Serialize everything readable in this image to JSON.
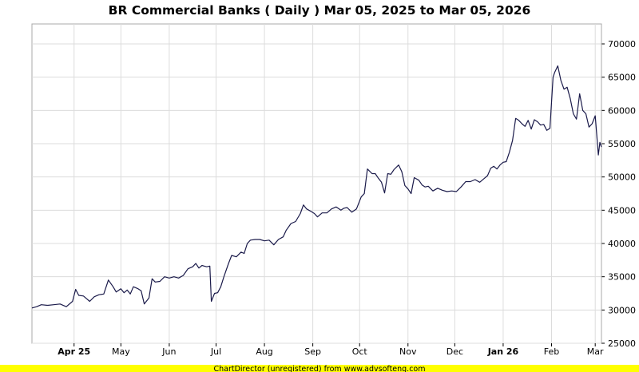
{
  "chart_data": {
    "type": "line",
    "title": "BR Commercial Banks ( Daily ) Mar 05, 2025 to Mar 05, 2026",
    "xlabel": "",
    "ylabel": "",
    "x_range": [
      "2025-03-05",
      "2026-03-05"
    ],
    "ylim": [
      25000,
      73000
    ],
    "y_ticks": [
      25000,
      30000,
      35000,
      40000,
      45000,
      50000,
      55000,
      60000,
      65000,
      70000
    ],
    "x_ticks": [
      {
        "date": "2025-04-01",
        "label": "Apr 25",
        "bold": true
      },
      {
        "date": "2025-05-01",
        "label": "May",
        "bold": false
      },
      {
        "date": "2025-06-01",
        "label": "Jun",
        "bold": false
      },
      {
        "date": "2025-07-01",
        "label": "Jul",
        "bold": false
      },
      {
        "date": "2025-08-01",
        "label": "Aug",
        "bold": false
      },
      {
        "date": "2025-09-01",
        "label": "Sep",
        "bold": false
      },
      {
        "date": "2025-10-01",
        "label": "Oct",
        "bold": false
      },
      {
        "date": "2025-11-01",
        "label": "Nov",
        "bold": false
      },
      {
        "date": "2025-12-01",
        "label": "Dec",
        "bold": false
      },
      {
        "date": "2026-01-01",
        "label": "Jan 26",
        "bold": true
      },
      {
        "date": "2026-02-01",
        "label": "Feb",
        "bold": false
      },
      {
        "date": "2026-03-01",
        "label": "Mar",
        "bold": false
      }
    ],
    "grid": true,
    "line_color": "#1a1a4a",
    "series": [
      {
        "points": [
          [
            "2025-03-05",
            30300
          ],
          [
            "2025-03-08",
            30500
          ],
          [
            "2025-03-11",
            30800
          ],
          [
            "2025-03-15",
            30700
          ],
          [
            "2025-03-19",
            30800
          ],
          [
            "2025-03-23",
            30900
          ],
          [
            "2025-03-27",
            30500
          ],
          [
            "2025-03-31",
            31300
          ],
          [
            "2025-04-02",
            33100
          ],
          [
            "2025-04-04",
            32200
          ],
          [
            "2025-04-07",
            32100
          ],
          [
            "2025-04-09",
            31700
          ],
          [
            "2025-04-11",
            31300
          ],
          [
            "2025-04-14",
            32000
          ],
          [
            "2025-04-17",
            32300
          ],
          [
            "2025-04-20",
            32400
          ],
          [
            "2025-04-23",
            34500
          ],
          [
            "2025-04-26",
            33500
          ],
          [
            "2025-04-28",
            32700
          ],
          [
            "2025-05-01",
            33200
          ],
          [
            "2025-05-03",
            32600
          ],
          [
            "2025-05-05",
            33000
          ],
          [
            "2025-05-07",
            32400
          ],
          [
            "2025-05-09",
            33500
          ],
          [
            "2025-05-12",
            33200
          ],
          [
            "2025-05-14",
            32900
          ],
          [
            "2025-05-16",
            30900
          ],
          [
            "2025-05-19",
            31800
          ],
          [
            "2025-05-21",
            34700
          ],
          [
            "2025-05-23",
            34200
          ],
          [
            "2025-05-26",
            34300
          ],
          [
            "2025-05-29",
            35000
          ],
          [
            "2025-06-01",
            34800
          ],
          [
            "2025-06-04",
            35000
          ],
          [
            "2025-06-07",
            34800
          ],
          [
            "2025-06-10",
            35200
          ],
          [
            "2025-06-13",
            36200
          ],
          [
            "2025-06-16",
            36500
          ],
          [
            "2025-06-18",
            37000
          ],
          [
            "2025-06-20",
            36300
          ],
          [
            "2025-06-22",
            36700
          ],
          [
            "2025-06-25",
            36500
          ],
          [
            "2025-06-27",
            36600
          ],
          [
            "2025-06-28",
            31300
          ],
          [
            "2025-06-30",
            32500
          ],
          [
            "2025-07-02",
            32600
          ],
          [
            "2025-07-04",
            33500
          ],
          [
            "2025-07-06",
            35000
          ],
          [
            "2025-07-09",
            37000
          ],
          [
            "2025-07-11",
            38200
          ],
          [
            "2025-07-14",
            38000
          ],
          [
            "2025-07-17",
            38700
          ],
          [
            "2025-07-19",
            38500
          ],
          [
            "2025-07-21",
            40000
          ],
          [
            "2025-07-23",
            40500
          ],
          [
            "2025-07-26",
            40600
          ],
          [
            "2025-07-29",
            40600
          ],
          [
            "2025-08-01",
            40400
          ],
          [
            "2025-08-04",
            40500
          ],
          [
            "2025-08-07",
            39800
          ],
          [
            "2025-08-10",
            40600
          ],
          [
            "2025-08-13",
            41000
          ],
          [
            "2025-08-15",
            42000
          ],
          [
            "2025-08-18",
            43000
          ],
          [
            "2025-08-21",
            43300
          ],
          [
            "2025-08-24",
            44500
          ],
          [
            "2025-08-26",
            45800
          ],
          [
            "2025-08-28",
            45200
          ],
          [
            "2025-08-31",
            44800
          ],
          [
            "2025-09-02",
            44500
          ],
          [
            "2025-09-04",
            44000
          ],
          [
            "2025-09-07",
            44600
          ],
          [
            "2025-09-10",
            44600
          ],
          [
            "2025-09-13",
            45200
          ],
          [
            "2025-09-16",
            45500
          ],
          [
            "2025-09-19",
            45000
          ],
          [
            "2025-09-21",
            45300
          ],
          [
            "2025-09-23",
            45400
          ],
          [
            "2025-09-26",
            44700
          ],
          [
            "2025-09-29",
            45200
          ],
          [
            "2025-10-02",
            47000
          ],
          [
            "2025-10-04",
            47500
          ],
          [
            "2025-10-06",
            51200
          ],
          [
            "2025-10-09",
            50500
          ],
          [
            "2025-10-11",
            50500
          ],
          [
            "2025-10-13",
            49800
          ],
          [
            "2025-10-15",
            49200
          ],
          [
            "2025-10-17",
            47600
          ],
          [
            "2025-10-19",
            50500
          ],
          [
            "2025-10-21",
            50400
          ],
          [
            "2025-10-23",
            51100
          ],
          [
            "2025-10-26",
            51800
          ],
          [
            "2025-10-28",
            50800
          ],
          [
            "2025-10-30",
            48700
          ],
          [
            "2025-11-01",
            48200
          ],
          [
            "2025-11-03",
            47500
          ],
          [
            "2025-11-05",
            49900
          ],
          [
            "2025-11-08",
            49500
          ],
          [
            "2025-11-10",
            48800
          ],
          [
            "2025-11-12",
            48500
          ],
          [
            "2025-11-14",
            48600
          ],
          [
            "2025-11-17",
            47900
          ],
          [
            "2025-11-20",
            48300
          ],
          [
            "2025-11-23",
            48000
          ],
          [
            "2025-11-26",
            47800
          ],
          [
            "2025-11-29",
            47900
          ],
          [
            "2025-12-02",
            47800
          ],
          [
            "2025-12-05",
            48500
          ],
          [
            "2025-12-08",
            49300
          ],
          [
            "2025-12-11",
            49300
          ],
          [
            "2025-12-14",
            49600
          ],
          [
            "2025-12-17",
            49200
          ],
          [
            "2025-12-20",
            49800
          ],
          [
            "2025-12-22",
            50200
          ],
          [
            "2025-12-24",
            51300
          ],
          [
            "2025-12-26",
            51600
          ],
          [
            "2025-12-28",
            51200
          ],
          [
            "2025-12-30",
            51800
          ],
          [
            "2026-01-01",
            52200
          ],
          [
            "2026-01-03",
            52300
          ],
          [
            "2026-01-05",
            53700
          ],
          [
            "2026-01-07",
            55500
          ],
          [
            "2026-01-09",
            58800
          ],
          [
            "2026-01-11",
            58500
          ],
          [
            "2026-01-13",
            58000
          ],
          [
            "2026-01-15",
            57600
          ],
          [
            "2026-01-17",
            58500
          ],
          [
            "2026-01-19",
            57200
          ],
          [
            "2026-01-21",
            58600
          ],
          [
            "2026-01-23",
            58300
          ],
          [
            "2026-01-25",
            57800
          ],
          [
            "2026-01-27",
            57900
          ],
          [
            "2026-01-29",
            57000
          ],
          [
            "2026-01-31",
            57300
          ],
          [
            "2026-02-02",
            65000
          ],
          [
            "2026-02-03",
            65700
          ],
          [
            "2026-02-05",
            66700
          ],
          [
            "2026-02-07",
            64500
          ],
          [
            "2026-02-09",
            63200
          ],
          [
            "2026-02-11",
            63500
          ],
          [
            "2026-02-13",
            61800
          ],
          [
            "2026-02-15",
            59500
          ],
          [
            "2026-02-17",
            58700
          ],
          [
            "2026-02-19",
            62500
          ],
          [
            "2026-02-21",
            60000
          ],
          [
            "2026-02-23",
            59500
          ],
          [
            "2026-02-25",
            57500
          ],
          [
            "2026-02-27",
            58000
          ],
          [
            "2026-03-01",
            59200
          ],
          [
            "2026-03-03",
            53300
          ],
          [
            "2026-03-04",
            55200
          ],
          [
            "2026-03-05",
            54500
          ]
        ]
      }
    ]
  },
  "footer": {
    "text": "ChartDirector (unregistered) from www.advsofteng.com",
    "background": "#ffff00"
  }
}
